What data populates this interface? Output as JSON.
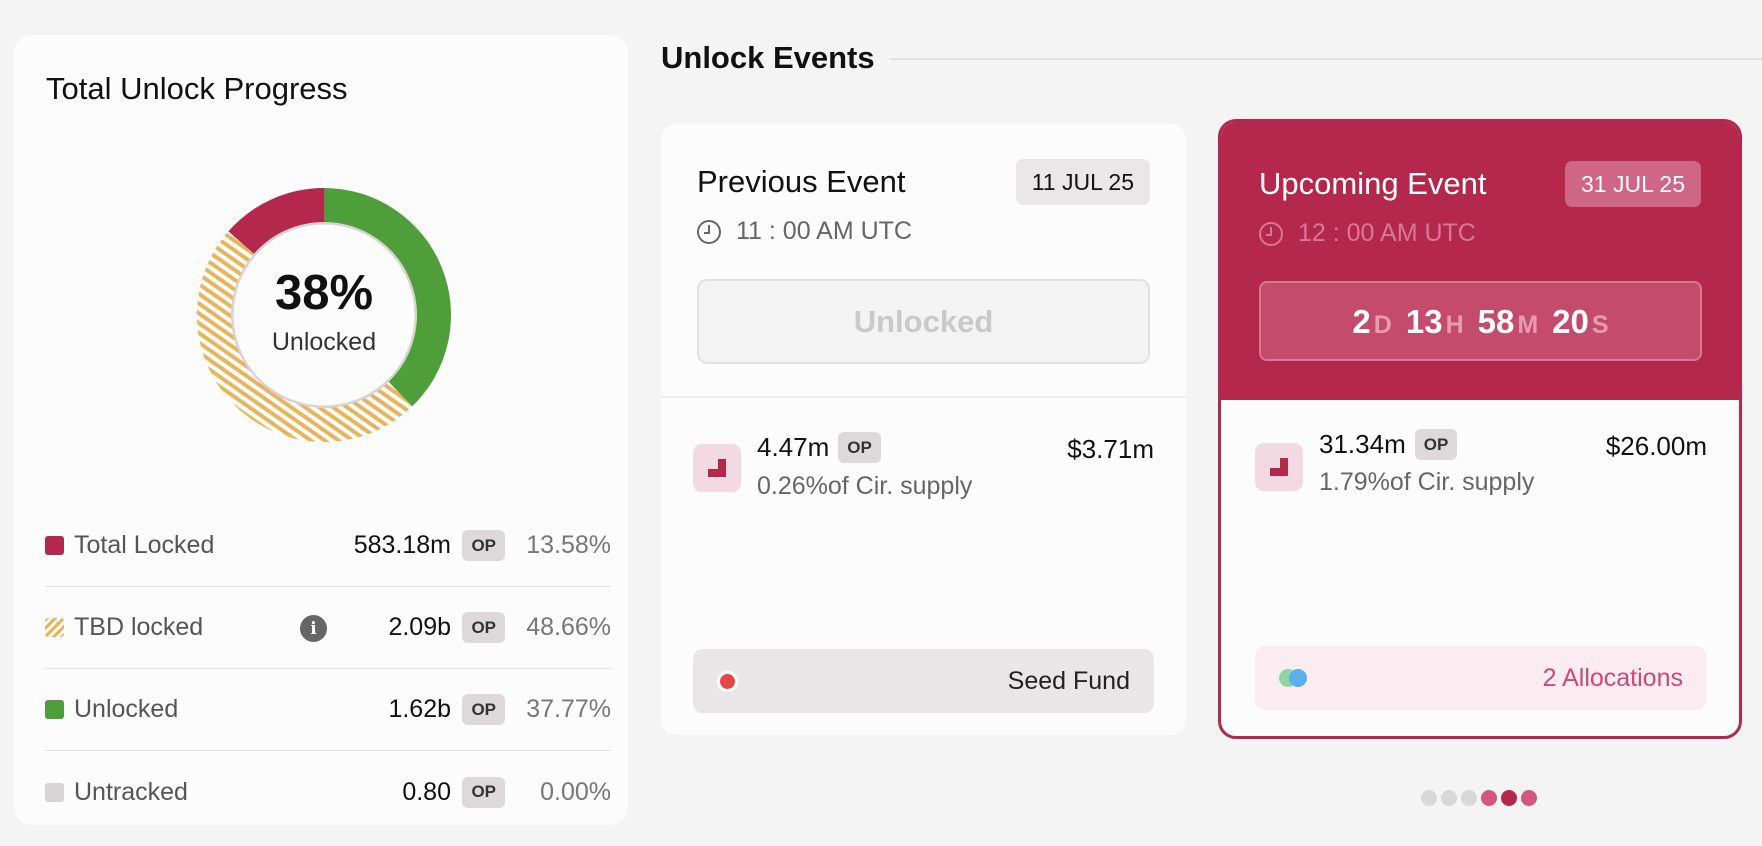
{
  "progress": {
    "title": "Total Unlock Progress",
    "percent": "38%",
    "percent_label": "Unlocked",
    "legend": [
      {
        "name": "Total Locked",
        "amount": "583.18m",
        "token": "OP",
        "pct": "13.58%",
        "color": "#b5284e"
      },
      {
        "name": "TBD locked",
        "amount": "2.09b",
        "token": "OP",
        "pct": "48.66%",
        "color": "#e8b55a"
      },
      {
        "name": "Unlocked",
        "amount": "1.62b",
        "token": "OP",
        "pct": "37.77%",
        "color": "#4e9e3a"
      },
      {
        "name": "Untracked",
        "amount": "0.80",
        "token": "OP",
        "pct": "0.00%",
        "color": "#d8d3d4"
      }
    ],
    "info_icon_glyph": "i"
  },
  "events": {
    "title": "Unlock Events",
    "previous": {
      "name": "Previous Event",
      "date": "11 JUL 25",
      "time": "11 : 00 AM UTC",
      "status": "Unlocked",
      "amount": "4.47m",
      "token": "OP",
      "supply": "0.26%of Cir. supply",
      "usd": "$3.71m",
      "allocation": "Seed Fund",
      "allocation_color": "#e84545"
    },
    "upcoming": {
      "name": "Upcoming Event",
      "date": "31 JUL 25",
      "time": "12 : 00 AM UTC",
      "countdown": [
        {
          "value": "2",
          "unit": "D"
        },
        {
          "value": "13",
          "unit": "H"
        },
        {
          "value": "58",
          "unit": "M"
        },
        {
          "value": "20",
          "unit": "S"
        }
      ],
      "amount": "31.34m",
      "token": "OP",
      "supply": "1.79%of Cir. supply",
      "usd": "$26.00m",
      "allocations": "2 Allocations",
      "allocation_colors": [
        "#8fd4a5",
        "#5ab0ec"
      ]
    }
  },
  "pager": {
    "colors": [
      "#d8d8d8",
      "#d8d8d8",
      "#d8d8d8",
      "#d8567d",
      "#b5284e",
      "#d8567d"
    ]
  },
  "colors": {
    "accent": "#b5284e",
    "locked": "#b5284e",
    "tbd": "#e8b55a",
    "unlocked": "#4e9e3a"
  }
}
